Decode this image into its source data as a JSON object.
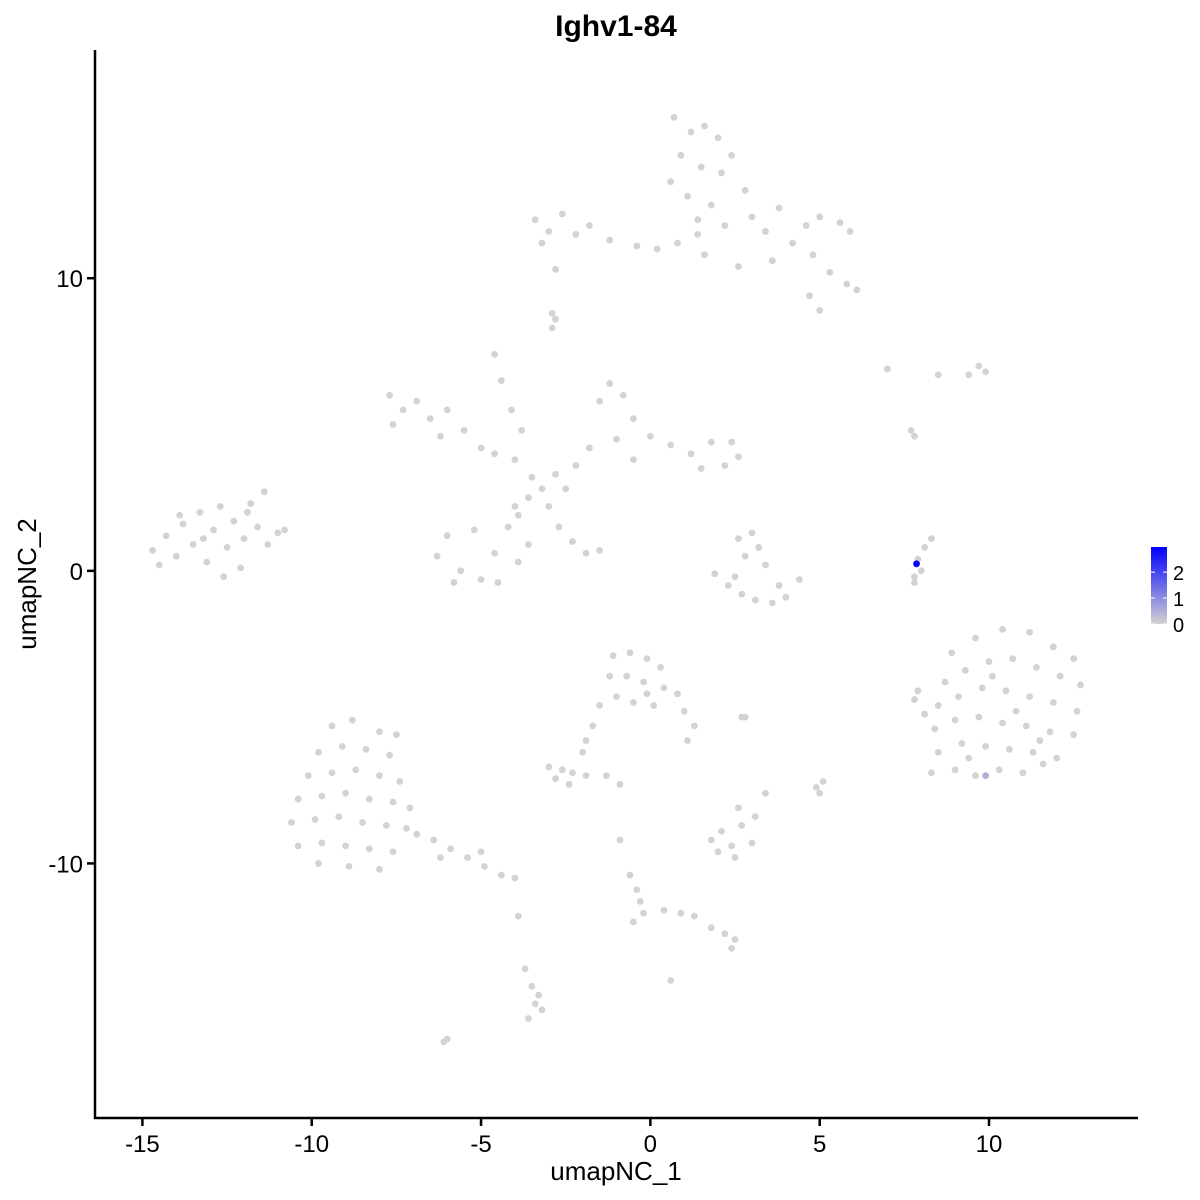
{
  "chart_data": {
    "type": "scatter",
    "title": "Ighv1-84",
    "xlabel": "umapNC_1",
    "ylabel": "umapNC_2",
    "xlim": [
      -16.4,
      14.4
    ],
    "ylim": [
      -18.7,
      17.8
    ],
    "xticks": [
      -15,
      -10,
      -5,
      0,
      5,
      10
    ],
    "xtick_labels": [
      "-15",
      "-10",
      "-5",
      "0",
      "5",
      "10"
    ],
    "yticks": [
      -10,
      0,
      10
    ],
    "ytick_labels": [
      "-10",
      "0",
      "10"
    ],
    "grid": false,
    "legend": {
      "placement": "right",
      "type": "colorbar",
      "ticks": [
        0,
        1,
        2
      ],
      "tick_labels": [
        "0",
        "1",
        "2"
      ],
      "max": 2.97
    },
    "colors": {
      "low": "#D3D3D3",
      "high": "#0000FF"
    },
    "points_zero_expression": [
      [
        -14.7,
        0.7
      ],
      [
        -14.3,
        1.2
      ],
      [
        -14.0,
        0.5
      ],
      [
        -13.8,
        1.6
      ],
      [
        -13.5,
        0.9
      ],
      [
        -13.3,
        2.0
      ],
      [
        -13.1,
        0.3
      ],
      [
        -12.9,
        1.4
      ],
      [
        -12.7,
        2.2
      ],
      [
        -12.5,
        0.8
      ],
      [
        -12.3,
        1.7
      ],
      [
        -12.1,
        0.1
      ],
      [
        -12.0,
        1.1
      ],
      [
        -11.8,
        2.3
      ],
      [
        -11.6,
        1.5
      ],
      [
        -11.4,
        2.7
      ],
      [
        -11.3,
        0.9
      ],
      [
        -11.0,
        1.3
      ],
      [
        -10.8,
        1.4
      ],
      [
        -13.9,
        1.9
      ],
      [
        -12.6,
        -0.2
      ],
      [
        -11.9,
        2.0
      ],
      [
        -13.2,
        1.1
      ],
      [
        -14.5,
        0.2
      ],
      [
        -7.7,
        6.0
      ],
      [
        -7.3,
        5.5
      ],
      [
        -6.9,
        5.8
      ],
      [
        -6.5,
        5.2
      ],
      [
        -7.6,
        5.0
      ],
      [
        -6.0,
        5.5
      ],
      [
        -5.5,
        4.8
      ],
      [
        -5.0,
        4.2
      ],
      [
        -6.2,
        4.6
      ],
      [
        -4.6,
        4.0
      ],
      [
        -4.6,
        7.4
      ],
      [
        -4.4,
        6.5
      ],
      [
        -4.1,
        5.5
      ],
      [
        -3.8,
        4.8
      ],
      [
        -4.0,
        3.8
      ],
      [
        -3.5,
        3.2
      ],
      [
        -3.2,
        2.8
      ],
      [
        -2.8,
        3.3
      ],
      [
        -3.0,
        2.2
      ],
      [
        -2.5,
        2.8
      ],
      [
        -3.6,
        2.5
      ],
      [
        -3.9,
        1.9
      ],
      [
        -2.2,
        3.6
      ],
      [
        -1.5,
        5.8
      ],
      [
        -1.2,
        6.4
      ],
      [
        -0.8,
        6.0
      ],
      [
        -0.5,
        5.2
      ],
      [
        -1.0,
        4.5
      ],
      [
        -1.8,
        4.2
      ],
      [
        0.0,
        4.6
      ],
      [
        0.6,
        4.3
      ],
      [
        1.2,
        4.0
      ],
      [
        1.8,
        4.4
      ],
      [
        2.2,
        3.6
      ],
      [
        2.6,
        3.9
      ],
      [
        2.4,
        4.4
      ],
      [
        1.5,
        3.5
      ],
      [
        -0.5,
        3.8
      ],
      [
        -6.3,
        0.5
      ],
      [
        -6.0,
        1.2
      ],
      [
        -5.6,
        0.0
      ],
      [
        -5.2,
        1.4
      ],
      [
        -5.0,
        -0.3
      ],
      [
        -4.6,
        0.6
      ],
      [
        -4.2,
        1.5
      ],
      [
        -4.5,
        -0.4
      ],
      [
        -3.9,
        0.3
      ],
      [
        -5.8,
        -0.4
      ],
      [
        -4.0,
        2.2
      ],
      [
        -3.6,
        0.9
      ],
      [
        -2.7,
        1.5
      ],
      [
        -2.3,
        1.0
      ],
      [
        -1.9,
        0.6
      ],
      [
        -1.5,
        0.7
      ],
      [
        -3.4,
        12.0
      ],
      [
        -3.0,
        11.6
      ],
      [
        -2.6,
        12.2
      ],
      [
        -2.2,
        11.5
      ],
      [
        -1.8,
        11.8
      ],
      [
        -3.2,
        11.2
      ],
      [
        -1.2,
        11.3
      ],
      [
        -0.4,
        11.1
      ],
      [
        0.2,
        11.0
      ],
      [
        0.8,
        11.2
      ],
      [
        1.4,
        11.5
      ],
      [
        1.6,
        10.8
      ],
      [
        0.7,
        15.5
      ],
      [
        1.2,
        15.0
      ],
      [
        1.6,
        15.2
      ],
      [
        2.0,
        14.8
      ],
      [
        0.9,
        14.2
      ],
      [
        1.5,
        13.8
      ],
      [
        2.1,
        13.6
      ],
      [
        0.6,
        13.3
      ],
      [
        1.1,
        12.8
      ],
      [
        1.8,
        12.5
      ],
      [
        2.4,
        14.2
      ],
      [
        2.8,
        13.0
      ],
      [
        1.4,
        12.0
      ],
      [
        2.2,
        11.8
      ],
      [
        3.0,
        12.1
      ],
      [
        3.4,
        11.6
      ],
      [
        3.8,
        12.4
      ],
      [
        4.2,
        11.2
      ],
      [
        4.6,
        11.8
      ],
      [
        5.0,
        12.1
      ],
      [
        5.6,
        11.9
      ],
      [
        5.9,
        11.6
      ],
      [
        4.8,
        10.8
      ],
      [
        5.3,
        10.2
      ],
      [
        5.8,
        9.8
      ],
      [
        6.1,
        9.6
      ],
      [
        4.7,
        9.4
      ],
      [
        5.0,
        8.9
      ],
      [
        3.6,
        10.6
      ],
      [
        2.6,
        10.4
      ],
      [
        -2.8,
        10.3
      ],
      [
        -2.9,
        8.8
      ],
      [
        -2.9,
        8.3
      ],
      [
        -2.8,
        8.6
      ],
      [
        1.9,
        -0.1
      ],
      [
        2.3,
        -0.5
      ],
      [
        2.7,
        -0.8
      ],
      [
        3.1,
        -1.0
      ],
      [
        3.6,
        -1.1
      ],
      [
        4.0,
        -0.9
      ],
      [
        4.4,
        -0.3
      ],
      [
        2.8,
        0.5
      ],
      [
        3.2,
        0.8
      ],
      [
        2.6,
        1.1
      ],
      [
        3.0,
        1.3
      ],
      [
        3.4,
        0.2
      ],
      [
        2.5,
        -0.2
      ],
      [
        3.8,
        -0.5
      ],
      [
        7.8,
        -0.2
      ],
      [
        7.9,
        0.4
      ],
      [
        8.1,
        0.8
      ],
      [
        8.3,
        1.1
      ],
      [
        8.0,
        0.0
      ],
      [
        7.8,
        -0.4
      ],
      [
        7.0,
        6.9
      ],
      [
        7.7,
        4.8
      ],
      [
        7.8,
        4.6
      ],
      [
        8.5,
        6.7
      ],
      [
        9.4,
        6.7
      ],
      [
        9.7,
        7.0
      ],
      [
        9.9,
        6.8
      ],
      [
        8.9,
        -2.8
      ],
      [
        9.6,
        -2.3
      ],
      [
        10.4,
        -2.0
      ],
      [
        11.2,
        -2.1
      ],
      [
        11.9,
        -2.6
      ],
      [
        12.5,
        -3.0
      ],
      [
        8.7,
        -3.8
      ],
      [
        9.3,
        -3.4
      ],
      [
        10.0,
        -3.1
      ],
      [
        10.7,
        -3.0
      ],
      [
        11.4,
        -3.3
      ],
      [
        12.1,
        -3.6
      ],
      [
        12.7,
        -3.9
      ],
      [
        8.5,
        -4.6
      ],
      [
        9.1,
        -4.3
      ],
      [
        9.8,
        -4.0
      ],
      [
        10.5,
        -4.1
      ],
      [
        11.2,
        -4.3
      ],
      [
        11.9,
        -4.5
      ],
      [
        12.6,
        -4.8
      ],
      [
        8.4,
        -5.4
      ],
      [
        9.0,
        -5.1
      ],
      [
        9.7,
        -5.0
      ],
      [
        10.4,
        -5.2
      ],
      [
        11.1,
        -5.3
      ],
      [
        11.8,
        -5.5
      ],
      [
        12.5,
        -5.6
      ],
      [
        8.5,
        -6.2
      ],
      [
        9.2,
        -5.9
      ],
      [
        9.9,
        -6.0
      ],
      [
        10.6,
        -6.1
      ],
      [
        11.3,
        -6.2
      ],
      [
        12.0,
        -6.4
      ],
      [
        8.3,
        -6.9
      ],
      [
        9.0,
        -6.8
      ],
      [
        9.6,
        -7.0
      ],
      [
        10.3,
        -6.8
      ],
      [
        11.0,
        -6.9
      ],
      [
        11.6,
        -6.6
      ],
      [
        7.8,
        -4.4
      ],
      [
        8.1,
        -4.9
      ],
      [
        7.9,
        -4.1
      ],
      [
        10.1,
        -3.6
      ],
      [
        10.8,
        -4.8
      ],
      [
        11.5,
        -5.8
      ],
      [
        9.4,
        -6.4
      ],
      [
        -9.4,
        -5.3
      ],
      [
        -8.8,
        -5.1
      ],
      [
        -8.0,
        -5.5
      ],
      [
        -7.5,
        -5.6
      ],
      [
        -9.8,
        -6.2
      ],
      [
        -9.1,
        -6.0
      ],
      [
        -8.4,
        -6.1
      ],
      [
        -7.7,
        -6.3
      ],
      [
        -10.1,
        -7.0
      ],
      [
        -9.4,
        -6.9
      ],
      [
        -8.7,
        -6.8
      ],
      [
        -8.0,
        -7.0
      ],
      [
        -7.4,
        -7.2
      ],
      [
        -10.4,
        -7.8
      ],
      [
        -9.7,
        -7.7
      ],
      [
        -9.0,
        -7.6
      ],
      [
        -8.3,
        -7.8
      ],
      [
        -7.6,
        -7.9
      ],
      [
        -7.1,
        -8.1
      ],
      [
        -10.6,
        -8.6
      ],
      [
        -9.9,
        -8.5
      ],
      [
        -9.2,
        -8.4
      ],
      [
        -8.5,
        -8.6
      ],
      [
        -7.8,
        -8.7
      ],
      [
        -7.2,
        -8.8
      ],
      [
        -10.4,
        -9.4
      ],
      [
        -9.7,
        -9.3
      ],
      [
        -9.0,
        -9.4
      ],
      [
        -8.3,
        -9.5
      ],
      [
        -7.6,
        -9.6
      ],
      [
        -9.8,
        -10.0
      ],
      [
        -8.9,
        -10.1
      ],
      [
        -8.0,
        -10.2
      ],
      [
        -6.9,
        -9.0
      ],
      [
        -6.4,
        -9.2
      ],
      [
        -5.9,
        -9.5
      ],
      [
        -5.4,
        -9.8
      ],
      [
        -4.9,
        -10.1
      ],
      [
        -4.4,
        -10.4
      ],
      [
        -4.0,
        -10.5
      ],
      [
        -6.2,
        -9.8
      ],
      [
        -5.0,
        -9.6
      ],
      [
        -1.1,
        -2.9
      ],
      [
        -0.6,
        -2.8
      ],
      [
        -0.1,
        -3.0
      ],
      [
        0.3,
        -3.3
      ],
      [
        -1.2,
        -3.6
      ],
      [
        -0.7,
        -3.6
      ],
      [
        -0.2,
        -3.8
      ],
      [
        0.4,
        -4.0
      ],
      [
        0.8,
        -4.2
      ],
      [
        -1.0,
        -4.3
      ],
      [
        -0.5,
        -4.5
      ],
      [
        0.1,
        -4.6
      ],
      [
        1.0,
        -4.8
      ],
      [
        1.3,
        -5.3
      ],
      [
        1.1,
        -5.8
      ],
      [
        -0.1,
        -4.2
      ],
      [
        -1.5,
        -4.6
      ],
      [
        -1.7,
        -5.3
      ],
      [
        -1.9,
        -5.8
      ],
      [
        -2.0,
        -6.2
      ],
      [
        -3.0,
        -6.7
      ],
      [
        -2.6,
        -6.8
      ],
      [
        -2.3,
        -6.9
      ],
      [
        -2.8,
        -7.1
      ],
      [
        -2.4,
        -7.3
      ],
      [
        -1.9,
        -7.0
      ],
      [
        -1.3,
        -7.0
      ],
      [
        -0.9,
        -7.3
      ],
      [
        1.8,
        -9.2
      ],
      [
        2.1,
        -8.9
      ],
      [
        2.4,
        -9.4
      ],
      [
        2.7,
        -8.7
      ],
      [
        2.5,
        -9.8
      ],
      [
        2.0,
        -9.6
      ],
      [
        3.0,
        -9.3
      ],
      [
        3.1,
        -8.4
      ],
      [
        2.6,
        -8.1
      ],
      [
        3.4,
        -7.6
      ],
      [
        2.7,
        -5.0
      ],
      [
        2.8,
        -5.0
      ],
      [
        4.9,
        -7.4
      ],
      [
        5.1,
        -7.2
      ],
      [
        5.0,
        -7.6
      ],
      [
        -0.9,
        -9.2
      ],
      [
        -0.6,
        -10.4
      ],
      [
        -0.4,
        -10.9
      ],
      [
        -0.3,
        -11.3
      ],
      [
        -0.2,
        -11.7
      ],
      [
        -0.5,
        -12.0
      ],
      [
        0.4,
        -11.6
      ],
      [
        0.9,
        -11.7
      ],
      [
        1.3,
        -11.8
      ],
      [
        1.8,
        -12.2
      ],
      [
        2.2,
        -12.4
      ],
      [
        2.5,
        -12.6
      ],
      [
        2.4,
        -12.9
      ],
      [
        0.6,
        -14.0
      ],
      [
        -3.9,
        -11.8
      ],
      [
        -3.7,
        -13.6
      ],
      [
        -3.5,
        -14.2
      ],
      [
        -3.4,
        -14.8
      ],
      [
        -3.6,
        -15.3
      ],
      [
        -3.2,
        -15.0
      ],
      [
        -3.3,
        -14.5
      ],
      [
        -6.1,
        -16.1
      ],
      [
        -6.0,
        -16.0
      ]
    ],
    "points_expressing": [
      [
        9.9,
        -7.0,
        0.5
      ],
      [
        7.86,
        0.24,
        2.9
      ]
    ]
  }
}
